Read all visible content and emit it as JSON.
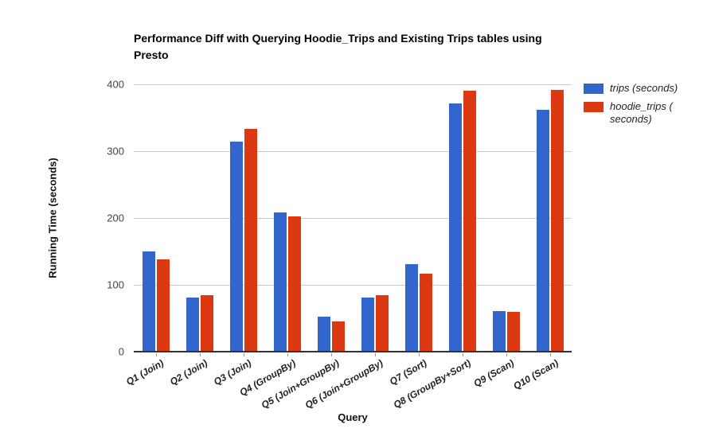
{
  "chart_data": {
    "type": "bar",
    "title": "Performance Diff with Querying Hoodie_Trips and Existing Trips tables using Presto",
    "xlabel": "Query",
    "ylabel": "Running Time (seconds)",
    "ylim": [
      0,
      400
    ],
    "yticks": [
      0,
      100,
      200,
      300,
      400
    ],
    "grid": true,
    "legend_position": "top-right",
    "categories": [
      "Q1 (Join)",
      "Q2 (Join)",
      "Q3 (Join)",
      "Q4 (GroupBy)",
      "Q5 (Join+GroupBy)",
      "Q6 (Join+GroupBy)",
      "Q7 (Sort)",
      "Q8 (GroupBy+Sort)",
      "Q9 (Scan)",
      "Q10 (Scan)"
    ],
    "series": [
      {
        "name": "trips (seconds)",
        "key": "trips",
        "color": "#3366CC",
        "legend_lines": [
          "trips (seconds)"
        ],
        "values": [
          150,
          81,
          314,
          208,
          52,
          81,
          131,
          371,
          61,
          362
        ]
      },
      {
        "name": "hoodie_trips (seconds)",
        "key": "hoodie_trips",
        "color": "#DC3912",
        "legend_lines": [
          "hoodie_trips (",
          "seconds)"
        ],
        "values": [
          138,
          84,
          333,
          202,
          45,
          85,
          117,
          390,
          60,
          392
        ]
      }
    ]
  },
  "colors": {
    "grid": "#cccccc",
    "baseline": "#333333",
    "title_text": "#000000",
    "axis_tick_text": "#444444",
    "category_text": "#222222",
    "background": "#ffffff"
  }
}
